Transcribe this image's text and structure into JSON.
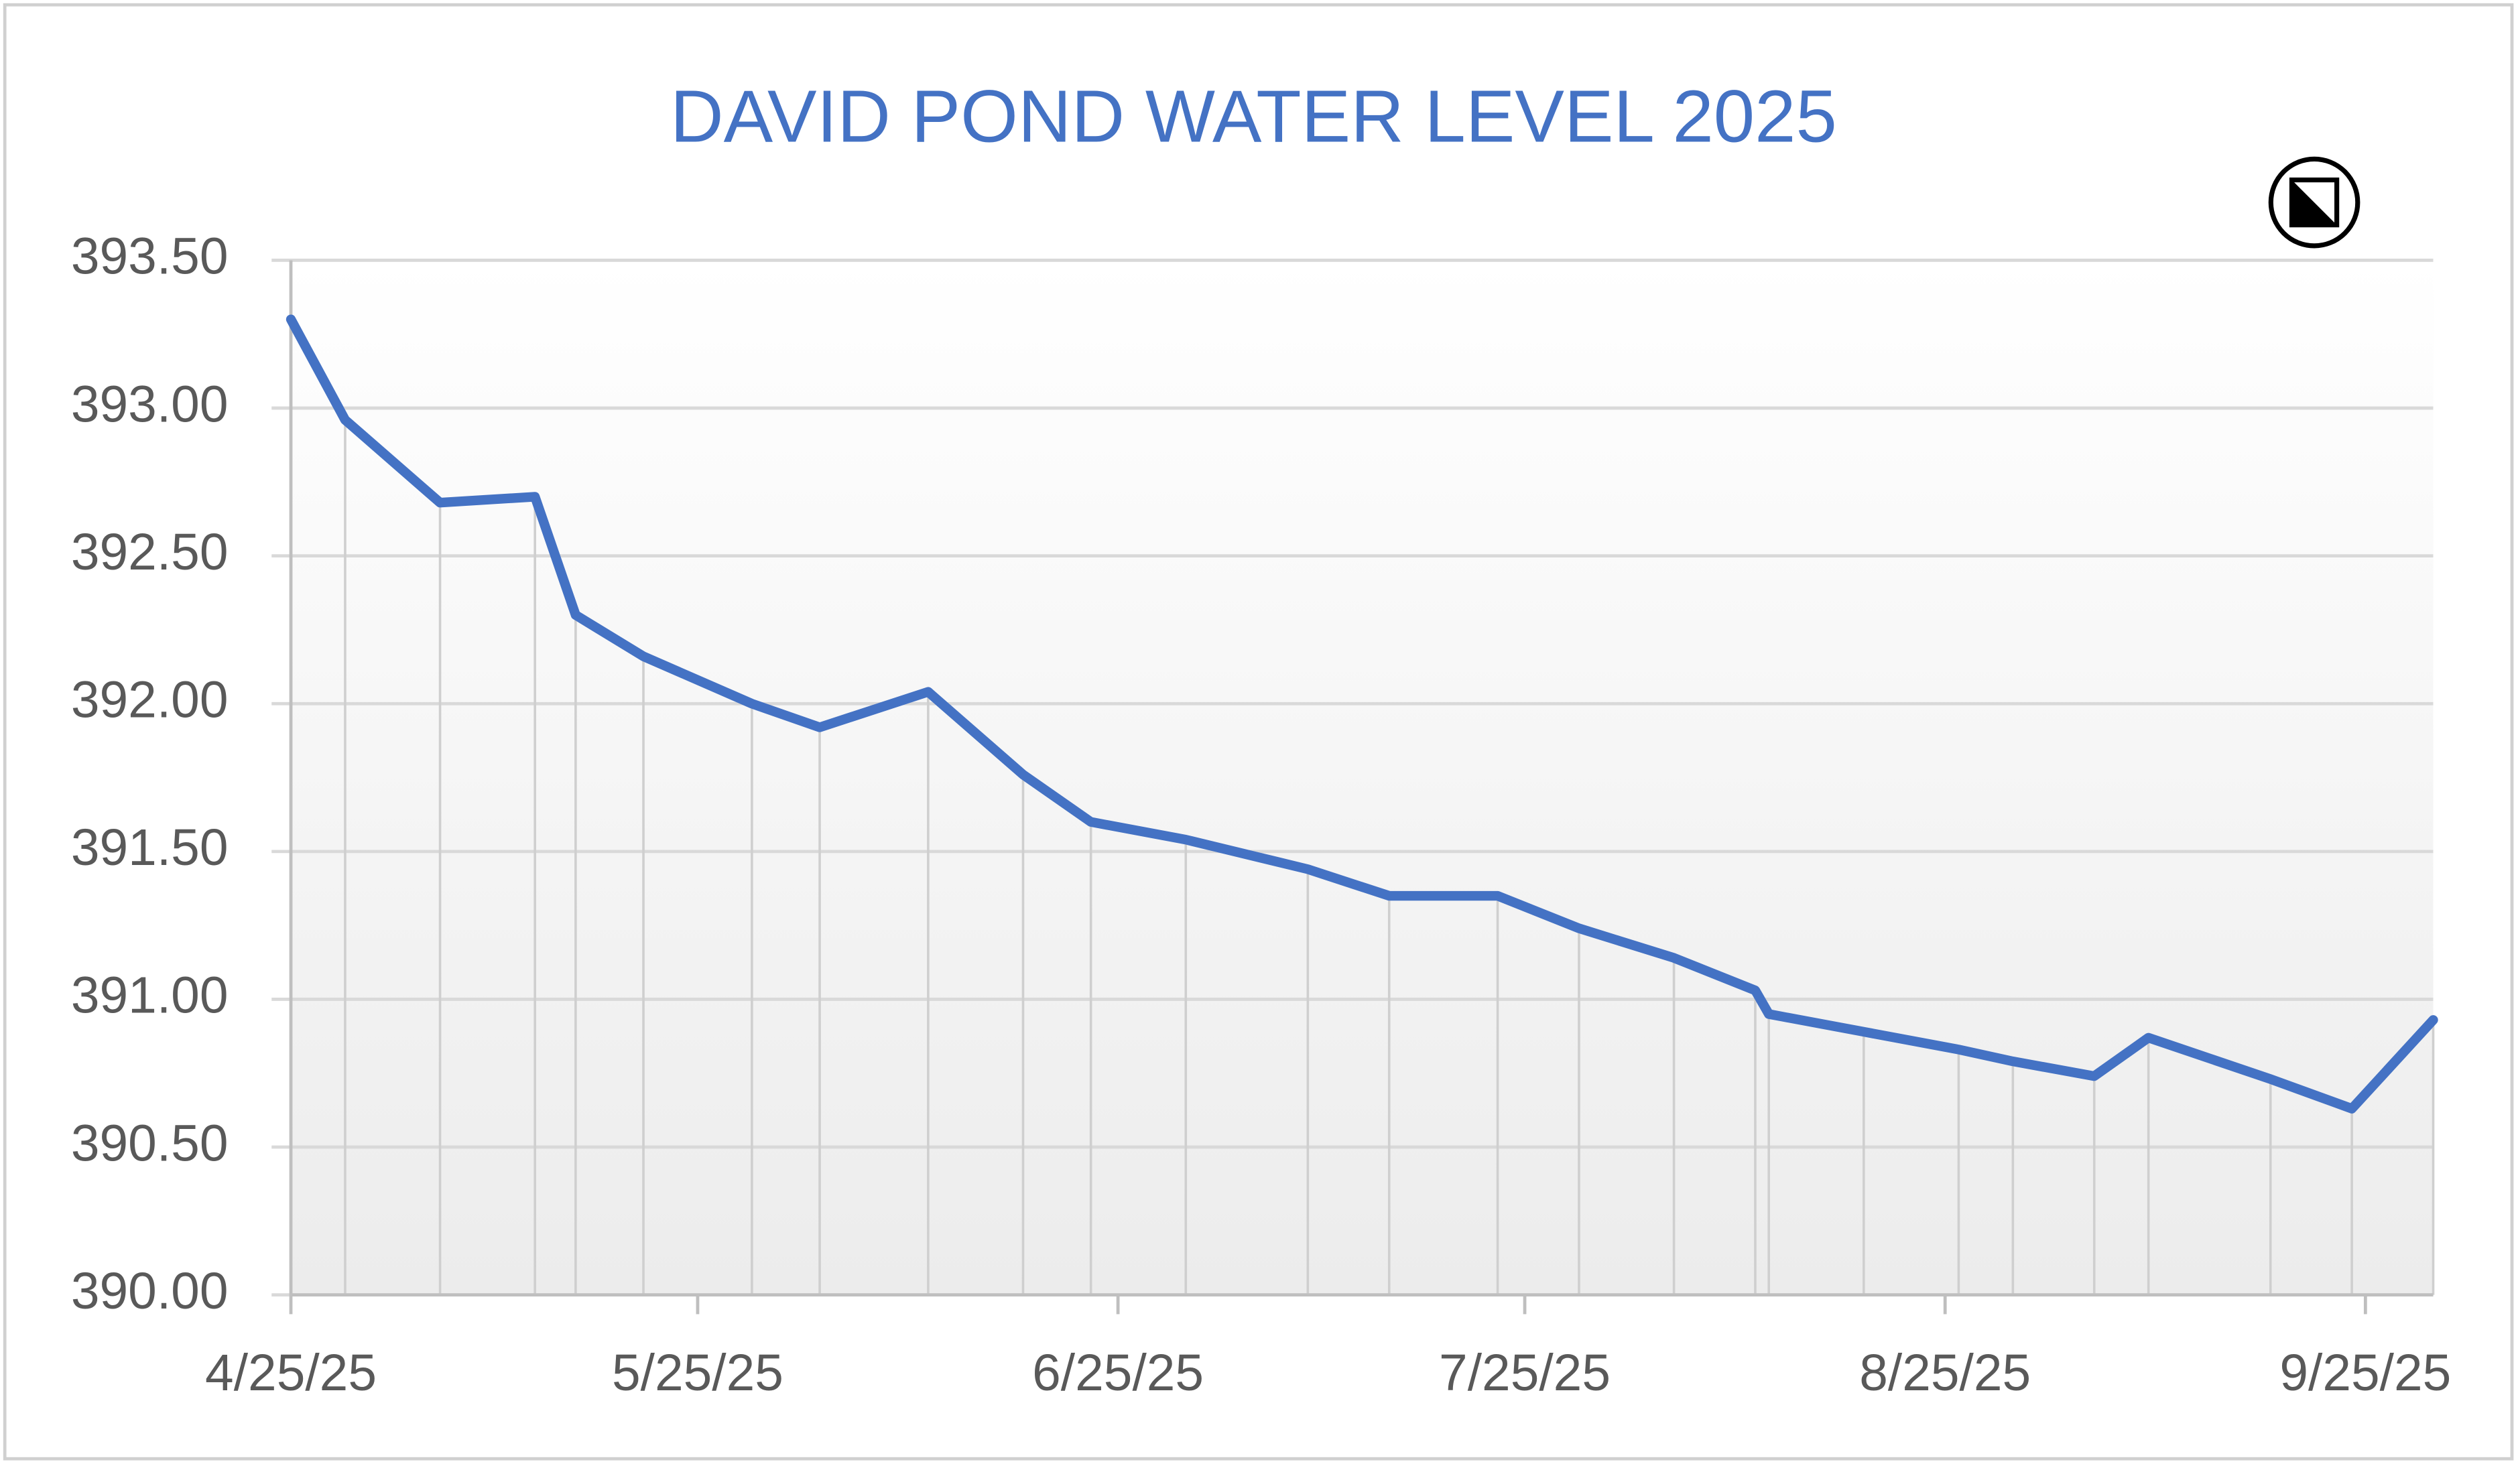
{
  "chart_data": {
    "type": "line",
    "title": "DAVID POND WATER LEVEL 2025",
    "x": [
      "4/25/25",
      "4/29/25",
      "5/6/25",
      "5/13/25",
      "5/16/25",
      "5/21/25",
      "5/29/25",
      "6/3/25",
      "6/11/25",
      "6/18/25",
      "6/23/25",
      "6/30/25",
      "7/9/25",
      "7/15/25",
      "7/23/25",
      "7/29/25",
      "8/5/25",
      "8/11/25",
      "8/12/25",
      "8/19/25",
      "8/26/25",
      "8/30/25",
      "9/5/25",
      "9/9/25",
      "9/18/25",
      "9/24/25",
      "9/30/25"
    ],
    "series": [
      {
        "name": "Water level",
        "color": "#4472c4",
        "values": [
          393.3,
          392.96,
          392.68,
          392.7,
          392.3,
          392.16,
          392.0,
          391.92,
          392.04,
          391.76,
          391.6,
          391.54,
          391.44,
          391.35,
          391.35,
          391.24,
          391.14,
          391.03,
          390.95,
          390.89,
          390.83,
          390.79,
          390.74,
          390.87,
          390.73,
          390.63,
          390.93
        ]
      }
    ],
    "xlim": [
      "4/25/25",
      "9/30/25"
    ],
    "xticks": [
      "4/25/25",
      "5/25/25",
      "6/25/25",
      "7/25/25",
      "8/25/25",
      "9/25/25"
    ],
    "ylim": [
      390,
      393.5
    ],
    "yticks": [
      {
        "value": 390,
        "label": "390.00"
      },
      {
        "value": 390.5,
        "label": "390.50"
      },
      {
        "value": 391,
        "label": "391.00"
      },
      {
        "value": 391.5,
        "label": "391.50"
      },
      {
        "value": 392,
        "label": "392.00"
      },
      {
        "value": 392.5,
        "label": "392.50"
      },
      {
        "value": 393,
        "label": "393.00"
      },
      {
        "value": 393.5,
        "label": "393.50"
      }
    ],
    "grid": true
  }
}
